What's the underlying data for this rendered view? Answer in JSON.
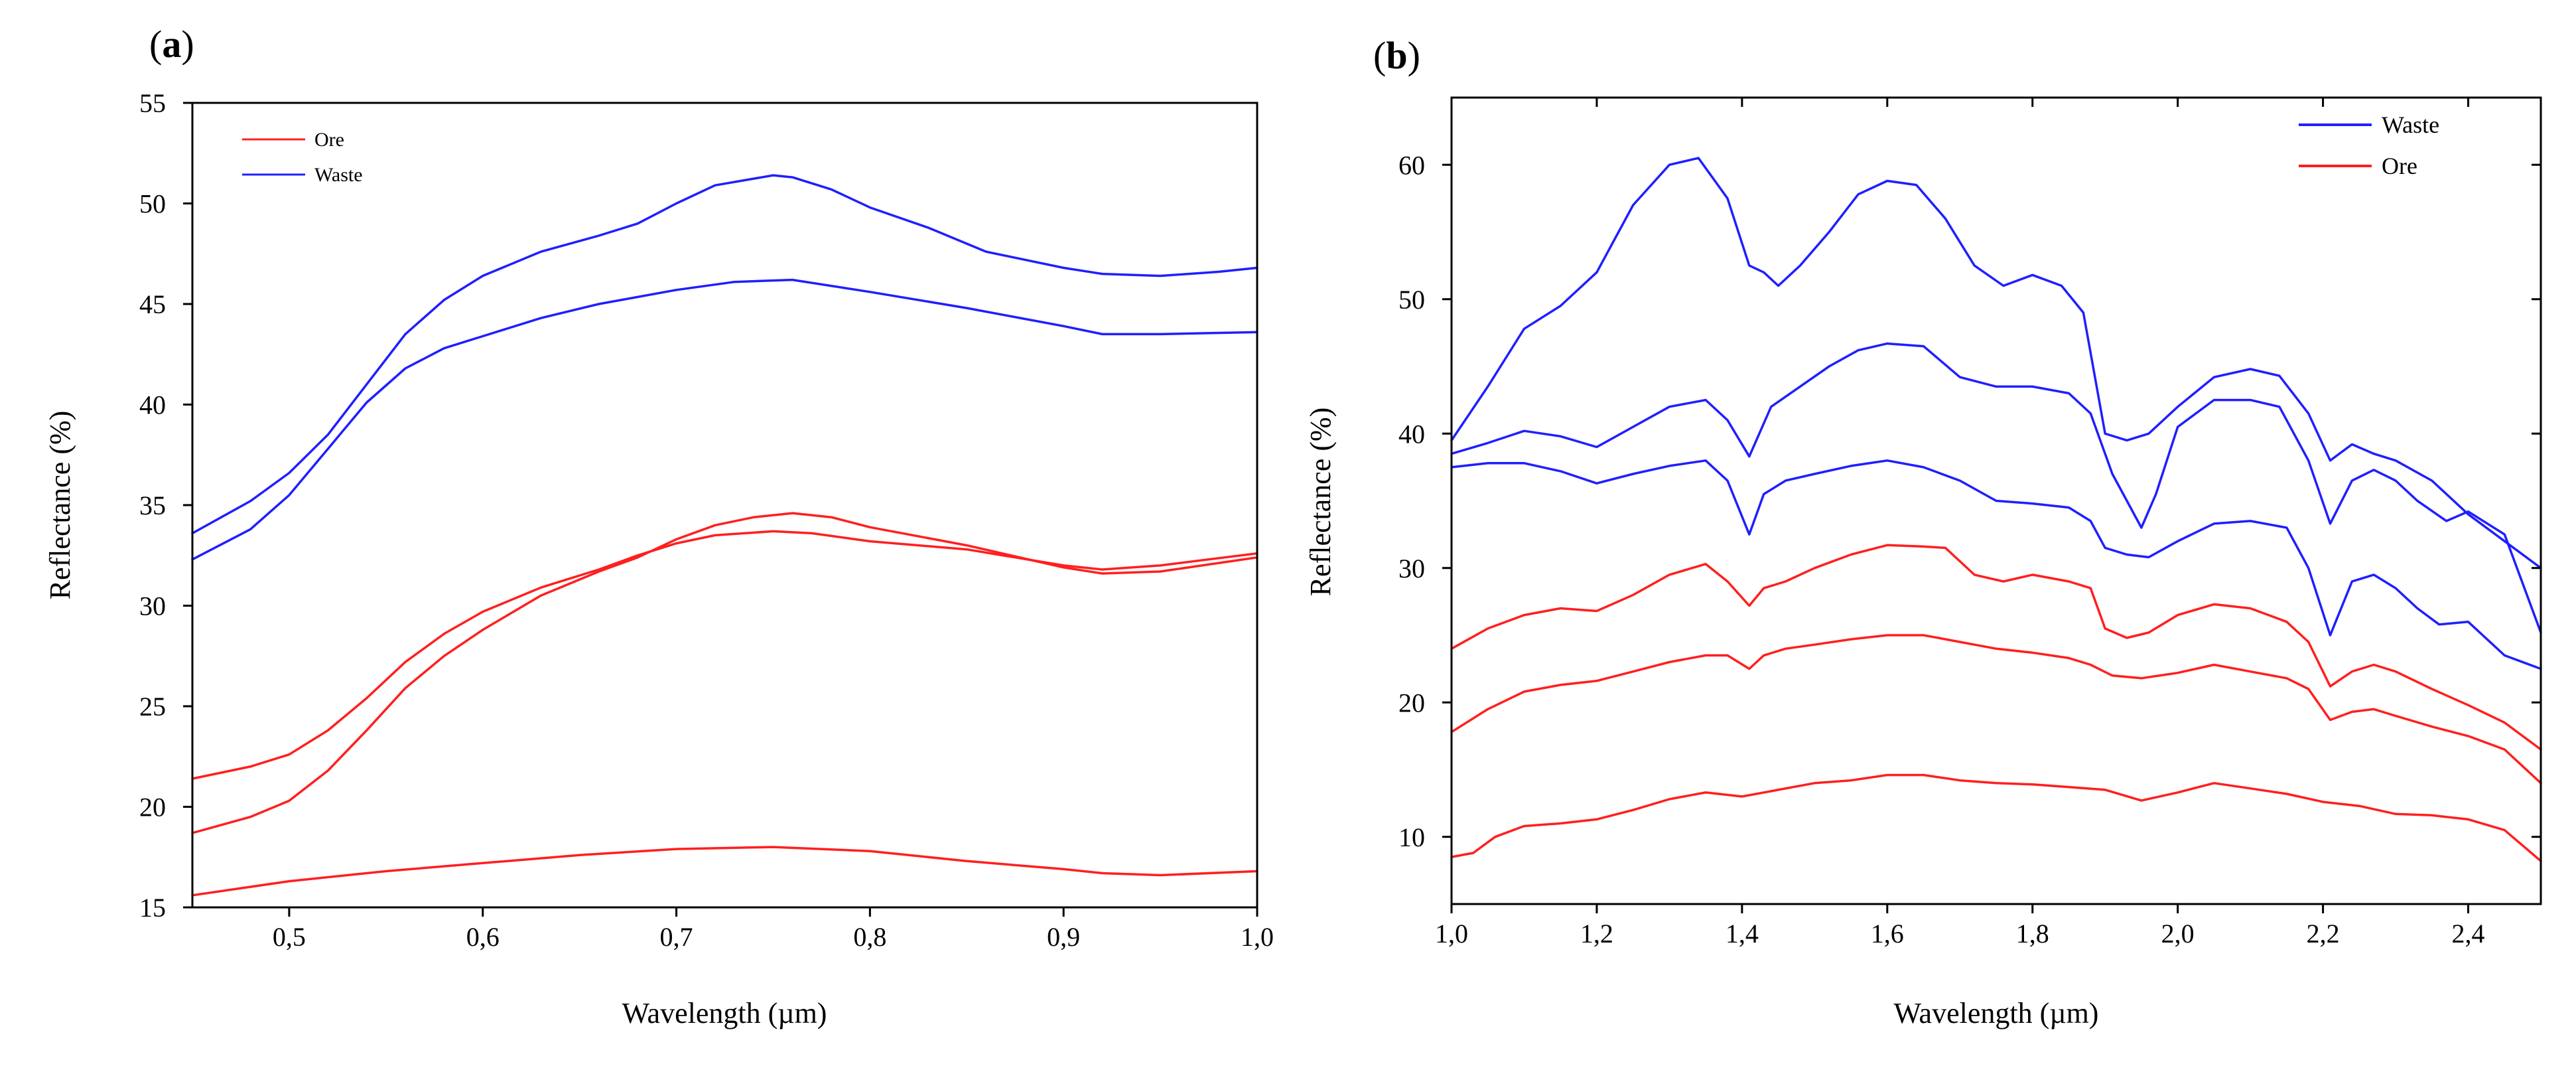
{
  "chart_data": [
    {
      "panel": "(a)",
      "panel_letter": "a",
      "type": "line",
      "title": "",
      "xlabel": "Wavelength (µm)",
      "ylabel": "Reflectance (%)",
      "xlim": [
        0.45,
        1.0
      ],
      "ylim": [
        15,
        55
      ],
      "xticks": [
        0.5,
        0.6,
        0.7,
        0.8,
        0.9,
        1.0
      ],
      "xtick_labels": [
        "0,5",
        "0,6",
        "0,7",
        "0,8",
        "0,9",
        "1,0"
      ],
      "yticks": [
        15,
        20,
        25,
        30,
        35,
        40,
        45,
        50,
        55
      ],
      "ytick_labels": [
        "15",
        "20",
        "25",
        "30",
        "35",
        "40",
        "45",
        "50",
        "55"
      ],
      "legend": {
        "position": "top-left",
        "entries": [
          {
            "label": "Ore",
            "color": "#ff2020"
          },
          {
            "label": "Waste",
            "color": "#2020ff"
          }
        ]
      },
      "series": [
        {
          "name": "Waste 1",
          "group": "Waste",
          "color": "#1f1fff",
          "x": [
            0.45,
            0.48,
            0.5,
            0.52,
            0.54,
            0.56,
            0.58,
            0.6,
            0.63,
            0.66,
            0.68,
            0.7,
            0.72,
            0.75,
            0.76,
            0.78,
            0.8,
            0.83,
            0.86,
            0.9,
            0.92,
            0.95,
            0.98,
            1.0
          ],
          "y": [
            33.6,
            35.2,
            36.6,
            38.5,
            41.0,
            43.5,
            45.2,
            46.4,
            47.6,
            48.4,
            49.0,
            50.0,
            50.9,
            51.4,
            51.3,
            50.7,
            49.8,
            48.8,
            47.6,
            46.8,
            46.5,
            46.4,
            46.6,
            46.8
          ]
        },
        {
          "name": "Waste 2",
          "group": "Waste",
          "color": "#1f1fff",
          "x": [
            0.45,
            0.48,
            0.5,
            0.52,
            0.54,
            0.56,
            0.58,
            0.6,
            0.63,
            0.66,
            0.7,
            0.73,
            0.76,
            0.8,
            0.85,
            0.9,
            0.92,
            0.95,
            1.0
          ],
          "y": [
            32.3,
            33.8,
            35.5,
            37.8,
            40.1,
            41.8,
            42.8,
            43.4,
            44.3,
            45.0,
            45.7,
            46.1,
            46.2,
            45.6,
            44.8,
            43.9,
            43.5,
            43.5,
            43.6
          ]
        },
        {
          "name": "Ore 1",
          "group": "Ore",
          "color": "#ff1f1f",
          "x": [
            0.45,
            0.48,
            0.5,
            0.52,
            0.54,
            0.56,
            0.58,
            0.6,
            0.63,
            0.66,
            0.68,
            0.7,
            0.72,
            0.75,
            0.77,
            0.8,
            0.85,
            0.9,
            0.92,
            0.95,
            1.0
          ],
          "y": [
            21.4,
            22.0,
            22.6,
            23.8,
            25.4,
            27.2,
            28.6,
            29.7,
            30.9,
            31.8,
            32.5,
            33.1,
            33.5,
            33.7,
            33.6,
            33.2,
            32.8,
            32.0,
            31.8,
            32.0,
            32.6
          ]
        },
        {
          "name": "Ore 2",
          "group": "Ore",
          "color": "#ff1f1f",
          "x": [
            0.45,
            0.48,
            0.5,
            0.52,
            0.54,
            0.56,
            0.58,
            0.6,
            0.63,
            0.66,
            0.68,
            0.7,
            0.72,
            0.74,
            0.76,
            0.78,
            0.8,
            0.85,
            0.9,
            0.92,
            0.95,
            1.0
          ],
          "y": [
            18.7,
            19.5,
            20.3,
            21.8,
            23.8,
            25.9,
            27.5,
            28.8,
            30.5,
            31.7,
            32.4,
            33.3,
            34.0,
            34.4,
            34.6,
            34.4,
            33.9,
            33.0,
            31.9,
            31.6,
            31.7,
            32.4
          ]
        },
        {
          "name": "Ore 3",
          "group": "Ore",
          "color": "#ff1f1f",
          "x": [
            0.45,
            0.5,
            0.55,
            0.6,
            0.65,
            0.7,
            0.75,
            0.8,
            0.85,
            0.9,
            0.92,
            0.95,
            1.0
          ],
          "y": [
            15.6,
            16.3,
            16.8,
            17.2,
            17.6,
            17.9,
            18.0,
            17.8,
            17.3,
            16.9,
            16.7,
            16.6,
            16.8
          ]
        }
      ]
    },
    {
      "panel": "(b)",
      "panel_letter": "b",
      "type": "line",
      "title": "",
      "xlabel": "Wavelength (µm)",
      "ylabel": "Reflectance (%)",
      "xlim": [
        1.0,
        2.5
      ],
      "ylim": [
        5,
        65
      ],
      "xticks": [
        1.0,
        1.2,
        1.4,
        1.6,
        1.8,
        2.0,
        2.2,
        2.4
      ],
      "xtick_labels": [
        "1,0",
        "1,2",
        "1,4",
        "1,6",
        "1,8",
        "2,0",
        "2,2",
        "2,4"
      ],
      "yticks": [
        10,
        20,
        30,
        40,
        50,
        60
      ],
      "ytick_labels": [
        "10",
        "20",
        "30",
        "40",
        "50",
        "60"
      ],
      "legend": {
        "position": "top-right",
        "entries": [
          {
            "label": "Waste",
            "color": "#2020ff"
          },
          {
            "label": "Ore",
            "color": "#ff2020"
          }
        ]
      },
      "series": [
        {
          "name": "Waste 1",
          "group": "Waste",
          "color": "#1f1fff",
          "x": [
            1.0,
            1.05,
            1.1,
            1.15,
            1.2,
            1.25,
            1.3,
            1.34,
            1.38,
            1.41,
            1.43,
            1.45,
            1.48,
            1.52,
            1.56,
            1.6,
            1.64,
            1.68,
            1.72,
            1.76,
            1.8,
            1.84,
            1.87,
            1.9,
            1.93,
            1.96,
            2.0,
            2.05,
            2.1,
            2.14,
            2.18,
            2.21,
            2.24,
            2.27,
            2.3,
            2.35,
            2.4,
            2.45,
            2.5
          ],
          "y": [
            39.5,
            43.5,
            47.8,
            49.5,
            52.0,
            57.0,
            60.0,
            60.5,
            57.5,
            52.5,
            52.0,
            51.0,
            52.5,
            55.0,
            57.8,
            58.8,
            58.5,
            56.0,
            52.5,
            51.0,
            51.8,
            51.0,
            49.0,
            40.0,
            39.5,
            40.0,
            42.0,
            44.2,
            44.8,
            44.3,
            41.5,
            38.0,
            39.2,
            38.5,
            38.0,
            36.5,
            34.0,
            32.0,
            30.0
          ]
        },
        {
          "name": "Waste 2",
          "group": "Waste",
          "color": "#1f1fff",
          "x": [
            1.0,
            1.05,
            1.1,
            1.15,
            1.2,
            1.25,
            1.3,
            1.35,
            1.38,
            1.41,
            1.44,
            1.48,
            1.52,
            1.56,
            1.6,
            1.65,
            1.7,
            1.75,
            1.8,
            1.85,
            1.88,
            1.91,
            1.93,
            1.95,
            1.97,
            2.0,
            2.05,
            2.1,
            2.14,
            2.18,
            2.21,
            2.24,
            2.27,
            2.3,
            2.33,
            2.37,
            2.4,
            2.45,
            2.5
          ],
          "y": [
            38.5,
            39.3,
            40.2,
            39.8,
            39.0,
            40.5,
            42.0,
            42.5,
            41.0,
            38.3,
            42.0,
            43.5,
            45.0,
            46.2,
            46.7,
            46.5,
            44.2,
            43.5,
            43.5,
            43.0,
            41.5,
            37.0,
            35.0,
            33.0,
            35.5,
            40.5,
            42.5,
            42.5,
            42.0,
            38.0,
            33.3,
            36.5,
            37.3,
            36.5,
            35.0,
            33.5,
            34.2,
            32.5,
            25.2
          ]
        },
        {
          "name": "Waste 3",
          "group": "Waste",
          "color": "#1f1fff",
          "x": [
            1.0,
            1.05,
            1.1,
            1.15,
            1.2,
            1.25,
            1.3,
            1.35,
            1.38,
            1.41,
            1.43,
            1.46,
            1.5,
            1.55,
            1.6,
            1.65,
            1.7,
            1.75,
            1.8,
            1.85,
            1.88,
            1.9,
            1.93,
            1.96,
            2.0,
            2.05,
            2.1,
            2.15,
            2.18,
            2.21,
            2.24,
            2.27,
            2.3,
            2.33,
            2.36,
            2.4,
            2.45,
            2.5
          ],
          "y": [
            37.5,
            37.8,
            37.8,
            37.2,
            36.3,
            37.0,
            37.6,
            38.0,
            36.5,
            32.5,
            35.5,
            36.5,
            37.0,
            37.6,
            38.0,
            37.5,
            36.5,
            35.0,
            34.8,
            34.5,
            33.5,
            31.5,
            31.0,
            30.8,
            32.0,
            33.3,
            33.5,
            33.0,
            30.0,
            25.0,
            29.0,
            29.5,
            28.5,
            27.0,
            25.8,
            26.0,
            23.5,
            22.5
          ]
        },
        {
          "name": "Ore 1",
          "group": "Ore",
          "color": "#ff1f1f",
          "x": [
            1.0,
            1.05,
            1.1,
            1.15,
            1.2,
            1.25,
            1.3,
            1.35,
            1.38,
            1.41,
            1.43,
            1.46,
            1.5,
            1.55,
            1.6,
            1.65,
            1.68,
            1.72,
            1.76,
            1.8,
            1.85,
            1.88,
            1.9,
            1.93,
            1.96,
            2.0,
            2.05,
            2.1,
            2.15,
            2.18,
            2.21,
            2.24,
            2.27,
            2.3,
            2.35,
            2.4,
            2.45,
            2.5
          ],
          "y": [
            24.0,
            25.5,
            26.5,
            27.0,
            26.8,
            28.0,
            29.5,
            30.3,
            29.0,
            27.2,
            28.5,
            29.0,
            30.0,
            31.0,
            31.7,
            31.6,
            31.5,
            29.5,
            29.0,
            29.5,
            29.0,
            28.5,
            25.5,
            24.8,
            25.2,
            26.5,
            27.3,
            27.0,
            26.0,
            24.5,
            21.2,
            22.3,
            22.8,
            22.3,
            21.0,
            19.8,
            18.5,
            16.5
          ]
        },
        {
          "name": "Ore 2",
          "group": "Ore",
          "color": "#ff1f1f",
          "x": [
            1.0,
            1.05,
            1.1,
            1.15,
            1.2,
            1.25,
            1.3,
            1.35,
            1.38,
            1.41,
            1.43,
            1.46,
            1.5,
            1.55,
            1.6,
            1.65,
            1.7,
            1.75,
            1.8,
            1.85,
            1.88,
            1.91,
            1.95,
            2.0,
            2.05,
            2.1,
            2.15,
            2.18,
            2.21,
            2.24,
            2.27,
            2.3,
            2.35,
            2.4,
            2.45,
            2.5
          ],
          "y": [
            17.8,
            19.5,
            20.8,
            21.3,
            21.6,
            22.3,
            23.0,
            23.5,
            23.5,
            22.5,
            23.5,
            24.0,
            24.3,
            24.7,
            25.0,
            25.0,
            24.5,
            24.0,
            23.7,
            23.3,
            22.8,
            22.0,
            21.8,
            22.2,
            22.8,
            22.3,
            21.8,
            21.0,
            18.7,
            19.3,
            19.5,
            19.0,
            18.2,
            17.5,
            16.5,
            14.0
          ]
        },
        {
          "name": "Ore 3",
          "group": "Ore",
          "color": "#ff1f1f",
          "x": [
            1.0,
            1.03,
            1.06,
            1.1,
            1.15,
            1.2,
            1.25,
            1.3,
            1.35,
            1.4,
            1.45,
            1.5,
            1.55,
            1.6,
            1.65,
            1.7,
            1.75,
            1.8,
            1.85,
            1.9,
            1.95,
            2.0,
            2.05,
            2.1,
            2.15,
            2.2,
            2.25,
            2.3,
            2.35,
            2.4,
            2.45,
            2.5
          ],
          "y": [
            8.5,
            8.8,
            10.0,
            10.8,
            11.0,
            11.3,
            12.0,
            12.8,
            13.3,
            13.0,
            13.5,
            14.0,
            14.2,
            14.6,
            14.6,
            14.2,
            14.0,
            13.9,
            13.7,
            13.5,
            12.7,
            13.3,
            14.0,
            13.6,
            13.2,
            12.6,
            12.3,
            11.7,
            11.6,
            11.3,
            10.5,
            8.2
          ]
        }
      ]
    }
  ]
}
